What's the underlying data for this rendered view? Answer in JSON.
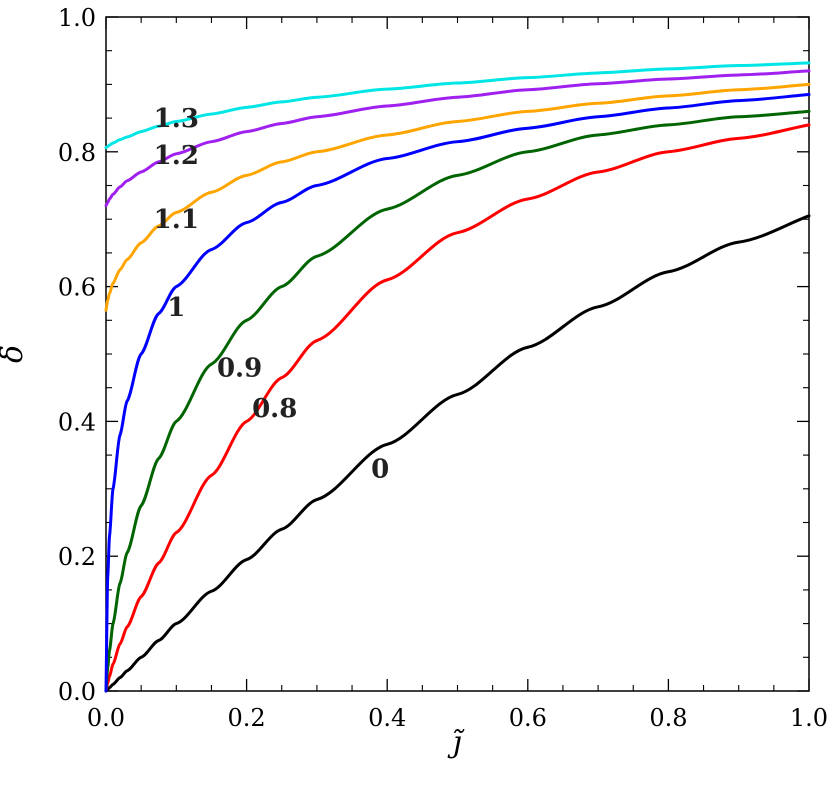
{
  "chart_data": {
    "type": "line",
    "title": "",
    "xlabel": "j̃",
    "ylabel": "δ",
    "xlim": [
      0,
      1
    ],
    "ylim": [
      0,
      1
    ],
    "xticks": [
      "0.0",
      "0.2",
      "0.4",
      "0.6",
      "0.8",
      "1.0"
    ],
    "yticks": [
      "0.0",
      "0.2",
      "0.4",
      "0.6",
      "0.8",
      "1.0"
    ],
    "grid": false,
    "x": [
      0,
      0.0025,
      0.005,
      0.01,
      0.02,
      0.03,
      0.05,
      0.075,
      0.1,
      0.15,
      0.2,
      0.25,
      0.3,
      0.4,
      0.5,
      0.6,
      0.7,
      0.8,
      0.9,
      1.0
    ],
    "series": [
      {
        "name": "0",
        "color": "#000000",
        "label_at": [
          0.39,
          0.33
        ],
        "values": [
          0,
          0.0025,
          0.005,
          0.01,
          0.02,
          0.03,
          0.05,
          0.075,
          0.1,
          0.148,
          0.195,
          0.24,
          0.284,
          0.366,
          0.44,
          0.51,
          0.57,
          0.622,
          0.666,
          0.705
        ]
      },
      {
        "name": "0.8",
        "color": "#ff0000",
        "label_at": [
          0.24,
          0.42
        ],
        "values": [
          0,
          0.012,
          0.022,
          0.04,
          0.07,
          0.095,
          0.14,
          0.19,
          0.235,
          0.32,
          0.4,
          0.465,
          0.52,
          0.61,
          0.68,
          0.73,
          0.77,
          0.8,
          0.82,
          0.84
        ]
      },
      {
        "name": "0.9",
        "color": "#006400",
        "label_at": [
          0.19,
          0.48
        ],
        "values": [
          0,
          0.035,
          0.06,
          0.1,
          0.16,
          0.205,
          0.275,
          0.345,
          0.4,
          0.485,
          0.55,
          0.6,
          0.645,
          0.715,
          0.765,
          0.8,
          0.825,
          0.84,
          0.852,
          0.86
        ]
      },
      {
        "name": "1",
        "color": "#0000ff",
        "label_at": [
          0.1,
          0.57
        ],
        "values": [
          0,
          0.17,
          0.23,
          0.3,
          0.38,
          0.43,
          0.5,
          0.56,
          0.6,
          0.655,
          0.695,
          0.725,
          0.75,
          0.79,
          0.815,
          0.835,
          0.852,
          0.865,
          0.876,
          0.885
        ]
      },
      {
        "name": "1.1",
        "color": "#ffa500",
        "label_at": [
          0.1,
          0.7
        ],
        "values": [
          0.565,
          0.58,
          0.59,
          0.605,
          0.625,
          0.64,
          0.665,
          0.69,
          0.71,
          0.74,
          0.765,
          0.785,
          0.8,
          0.825,
          0.845,
          0.86,
          0.872,
          0.883,
          0.892,
          0.9
        ]
      },
      {
        "name": "1.2",
        "color": "#a020f0",
        "label_at": [
          0.1,
          0.795
        ],
        "values": [
          0.72,
          0.725,
          0.73,
          0.737,
          0.748,
          0.757,
          0.77,
          0.785,
          0.797,
          0.815,
          0.83,
          0.842,
          0.852,
          0.868,
          0.881,
          0.892,
          0.901,
          0.908,
          0.914,
          0.92
        ]
      },
      {
        "name": "1.3",
        "color": "#00e5e5",
        "label_at": [
          0.1,
          0.85
        ],
        "values": [
          0.806,
          0.808,
          0.81,
          0.813,
          0.818,
          0.822,
          0.83,
          0.838,
          0.845,
          0.856,
          0.866,
          0.874,
          0.881,
          0.893,
          0.902,
          0.91,
          0.917,
          0.923,
          0.928,
          0.932
        ]
      }
    ]
  }
}
